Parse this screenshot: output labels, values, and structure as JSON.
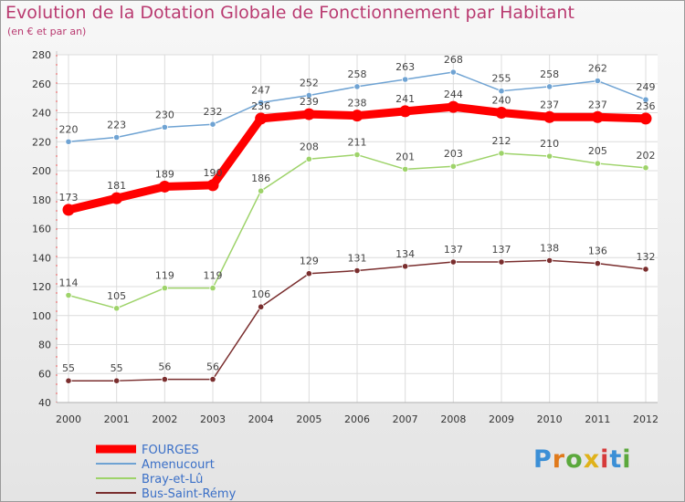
{
  "chart_data": {
    "type": "line",
    "title": "Evolution de la Dotation Globale de Fonctionnement par Habitant",
    "subtitle": "(en € et par an)",
    "xlabel": "",
    "ylabel": "",
    "x": [
      "2000",
      "2001",
      "2002",
      "2003",
      "2004",
      "2005",
      "2006",
      "2007",
      "2008",
      "2009",
      "2010",
      "2011",
      "2012"
    ],
    "ylim": [
      40,
      280
    ],
    "yticks": [
      40,
      60,
      80,
      100,
      120,
      140,
      160,
      180,
      200,
      220,
      240,
      260,
      280
    ],
    "grid": true,
    "legend_position": "bottom-left",
    "series": [
      {
        "name": "FOURGES",
        "color": "#ff0000",
        "values": [
          173,
          181,
          189,
          190,
          236,
          239,
          238,
          241,
          244,
          240,
          237,
          237,
          236
        ]
      },
      {
        "name": "Amenucourt",
        "color": "#6fa3d3",
        "values": [
          220,
          223,
          230,
          232,
          247,
          252,
          258,
          263,
          268,
          255,
          258,
          262,
          249
        ]
      },
      {
        "name": "Bray-et-Lû",
        "color": "#9ed36a",
        "values": [
          114,
          105,
          119,
          119,
          186,
          208,
          211,
          201,
          203,
          212,
          210,
          205,
          202
        ]
      },
      {
        "name": "Bus-Saint-Rémy",
        "color": "#7a2e2e",
        "values": [
          55,
          55,
          56,
          56,
          106,
          129,
          131,
          134,
          137,
          137,
          138,
          136,
          132
        ]
      }
    ]
  },
  "logo": {
    "text": "Proxiti"
  }
}
